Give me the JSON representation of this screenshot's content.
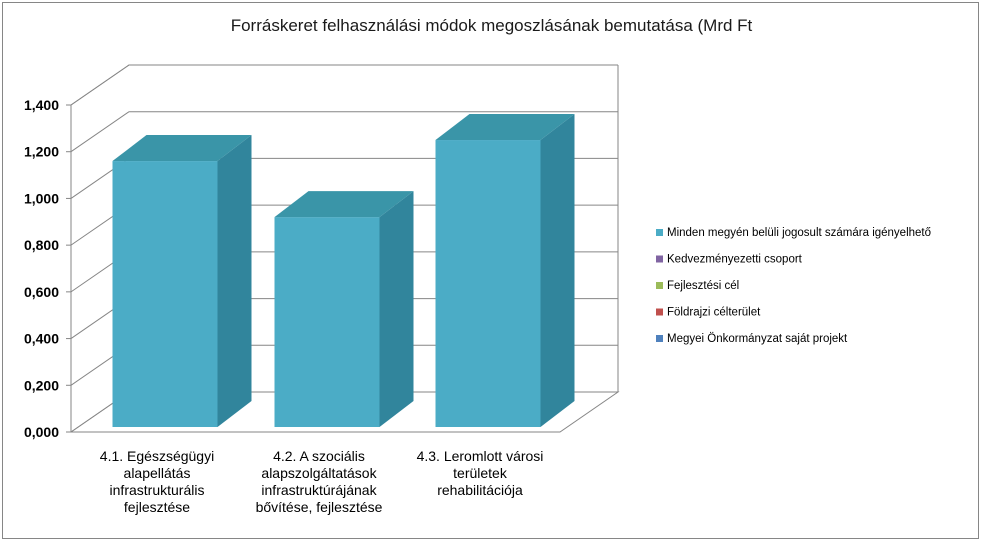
{
  "chart_data": {
    "type": "bar",
    "title": "Forráskeret felhasználási módok megoszlásának bemutatása (Mrd Ft",
    "categories": [
      [
        "4.1. Egészségügyi",
        "alapellátás",
        "infrastrukturális",
        "fejlesztése"
      ],
      [
        "4.2. A szociális",
        "alapszolgáltatások",
        "infrastruktúrájának",
        "bővítése, fejlesztése"
      ],
      [
        "4.3. Leromlott városi",
        "területek",
        "rehabilitációja"
      ]
    ],
    "series": [
      {
        "name": "Minden megyén belüli jogosult számára igényelhető",
        "values": [
          1.16,
          0.92,
          1.25
        ],
        "color": "#4bacc6"
      },
      {
        "name": "Kedvezményezetti csoport",
        "values": [
          0,
          0,
          0
        ],
        "color": "#8064a2"
      },
      {
        "name": "Fejlesztési cél",
        "values": [
          0,
          0,
          0
        ],
        "color": "#9bbb59"
      },
      {
        "name": "Földrajzi célterület",
        "values": [
          0,
          0,
          0
        ],
        "color": "#c0504d"
      },
      {
        "name": "Megyei Önkormányzat  saját projekt",
        "values": [
          0,
          0,
          0
        ],
        "color": "#4f81bd"
      }
    ],
    "y_ticks": [
      "0,000",
      "0,200",
      "0,400",
      "0,600",
      "0,800",
      "1,000",
      "1,200",
      "1,400"
    ],
    "ylim": [
      0,
      1.4
    ],
    "grid": true,
    "legend": "right",
    "style": "3d-column"
  }
}
